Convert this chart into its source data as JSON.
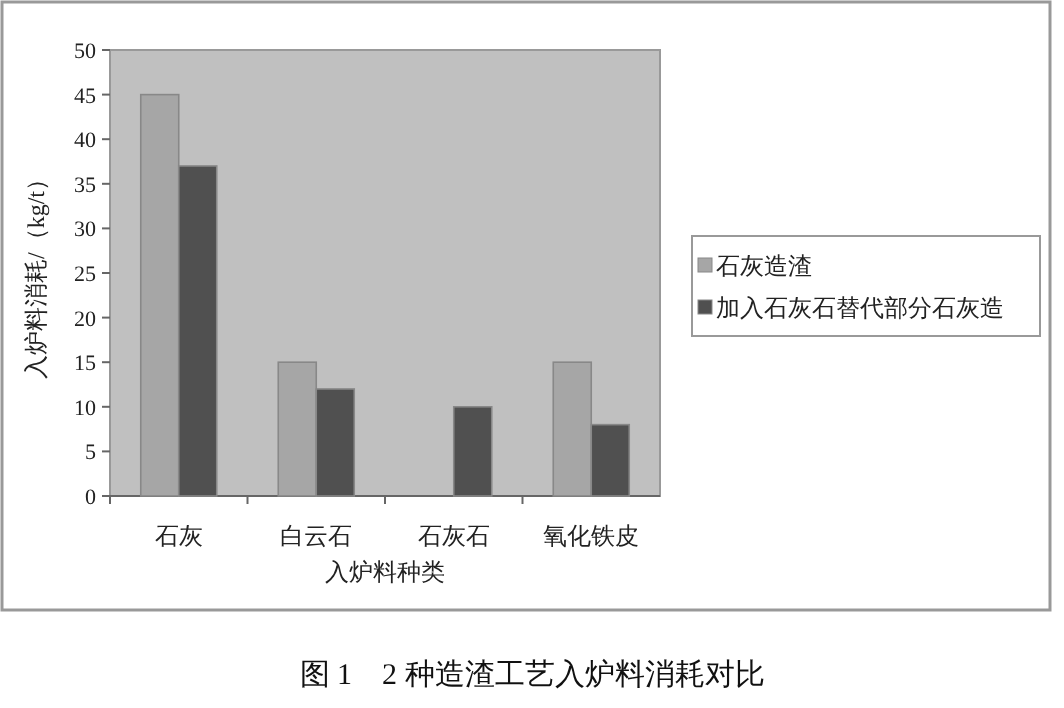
{
  "chart_data": {
    "type": "bar",
    "title": "图 1　2 种造渣工艺入炉料消耗对比",
    "xlabel": "入炉料种类",
    "ylabel": "入炉料消耗/（kg/t）",
    "categories": [
      "石灰",
      "白云石",
      "石灰石",
      "氧化铁皮"
    ],
    "series": [
      {
        "name": "石灰造渣",
        "color": "#a6a6a6",
        "values": [
          45,
          15,
          null,
          15
        ]
      },
      {
        "name": "加入石灰石替代部分石灰造",
        "color": "#505050",
        "values": [
          37,
          12,
          10,
          8
        ]
      }
    ],
    "ylim": [
      0,
      50
    ],
    "yticks": [
      0,
      5,
      10,
      15,
      20,
      25,
      30,
      35,
      40,
      45,
      50
    ],
    "grid": false,
    "legend": "right"
  }
}
